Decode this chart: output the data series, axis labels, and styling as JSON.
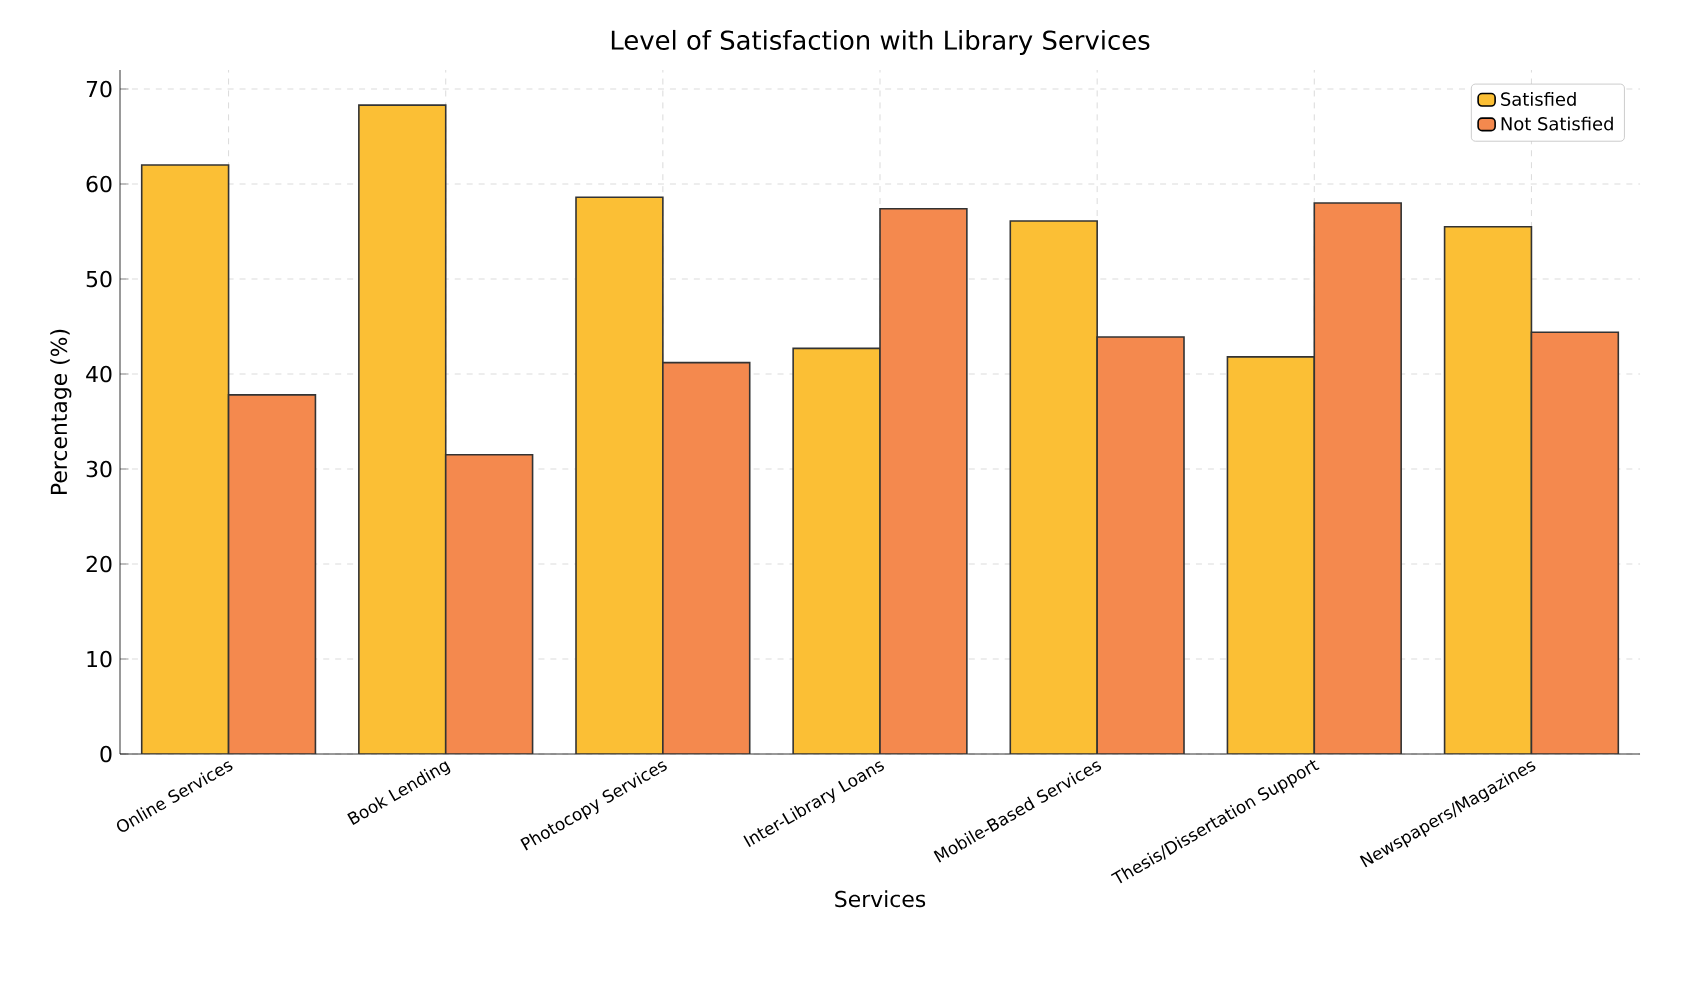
{
  "chart_data": {
    "type": "bar",
    "title": "Level of Satisfaction with Library Services",
    "xlabel": "Services",
    "ylabel": "Percentage (%)",
    "categories": [
      "Online Services",
      "Book Lending",
      "Photocopy Services",
      "Inter-Library Loans",
      "Mobile-Based Services",
      "Thesis/Dissertation Support",
      "Newspapers/Magazines"
    ],
    "series": [
      {
        "name": "Satisfied",
        "color": "#fbbf35",
        "values": [
          62.0,
          68.3,
          58.6,
          42.7,
          56.1,
          41.8,
          55.5
        ]
      },
      {
        "name": "Not Satisfied",
        "color": "#f4894e",
        "values": [
          37.8,
          31.5,
          41.2,
          57.4,
          43.9,
          58.0,
          44.4
        ]
      }
    ],
    "ylim": [
      0,
      72
    ],
    "yticks": [
      0,
      10,
      20,
      30,
      40,
      50,
      60,
      70
    ],
    "grid": true,
    "legend": "top right"
  }
}
